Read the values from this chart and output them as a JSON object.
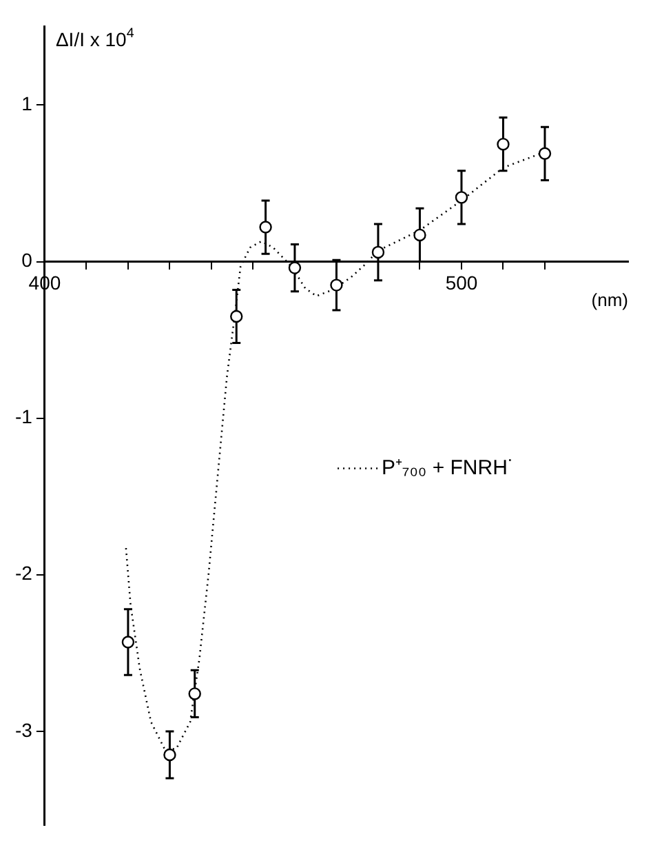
{
  "chart_data": {
    "type": "scatter",
    "ylabel": "ΔI/I x 10$^{4}$",
    "xlabel": "(nm)",
    "xlim": [
      400,
      540
    ],
    "ylim": [
      -3.6,
      1.5
    ],
    "xticks": [
      400,
      {
        "value": 410,
        "label": null
      },
      {
        "value": 420,
        "label": null
      },
      {
        "value": 430,
        "label": null
      },
      {
        "value": 440,
        "label": null
      },
      {
        "value": 450,
        "label": null
      },
      {
        "value": 460,
        "label": null
      },
      {
        "value": 470,
        "label": null
      },
      {
        "value": 480,
        "label": null
      },
      {
        "value": 490,
        "label": null
      },
      500,
      {
        "value": 510,
        "label": null
      },
      {
        "value": 520,
        "label": null
      }
    ],
    "yticks": [
      -3,
      -2,
      -1,
      0,
      1
    ],
    "legend": "right",
    "series": [
      {
        "type": "scatter",
        "marker": "circle",
        "color": "#000000",
        "x": [
          420,
          430,
          436,
          446,
          453,
          460,
          470,
          480,
          490,
          500,
          510,
          520
        ],
        "values": [
          -2.43,
          -3.15,
          -2.76,
          -0.35,
          0.22,
          -0.04,
          -0.15,
          0.06,
          0.17,
          0.41,
          0.75,
          0.69
        ],
        "errors": [
          0.21,
          0.15,
          0.15,
          0.17,
          0.17,
          0.15,
          0.16,
          0.18,
          0.17,
          0.17,
          0.17,
          0.17
        ]
      },
      {
        "type": "line",
        "name": "P⁺₇₀₀ + FNRH˙",
        "marker": "none",
        "line_style": "dotted",
        "color": "#000000",
        "x": [
          419.5,
          420.6,
          422.8,
          425.5,
          428.9,
          431.6,
          434.9,
          437.1,
          439.3,
          441.5,
          443.7,
          445.9,
          447,
          449.3,
          452,
          454.8,
          459.2,
          462.5,
          465.2,
          469.1,
          473.5,
          476.8,
          480,
          490,
          500,
          510,
          520
        ],
        "values": [
          -1.83,
          -2.19,
          -2.6,
          -2.94,
          -3.12,
          -3.11,
          -2.94,
          -2.54,
          -2,
          -1.37,
          -0.74,
          -0.28,
          -0.03,
          0.09,
          0.13,
          0.09,
          -0.03,
          -0.17,
          -0.22,
          -0.18,
          -0.1,
          -0.02,
          0.07,
          0.2,
          0.39,
          0.6,
          0.7
        ]
      }
    ]
  }
}
